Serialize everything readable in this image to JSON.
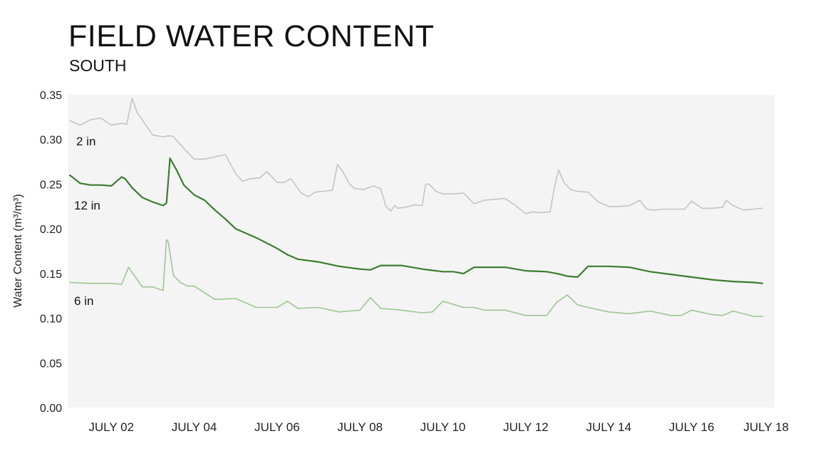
{
  "header": {
    "title": "FIELD WATER CONTENT",
    "subtitle": "SOUTH"
  },
  "chart_data": {
    "type": "line",
    "title": "FIELD WATER CONTENT",
    "subtitle": "SOUTH",
    "xlabel": "",
    "ylabel": "Water Content (m³/m³)",
    "xlim": [
      "2023-07-01T12:00",
      "2023-07-18T05:00"
    ],
    "ylim": [
      0,
      0.35
    ],
    "x_ticks": [
      {
        "date": "2023-07-02T12:00",
        "label": "JULY 02"
      },
      {
        "date": "2023-07-04T12:00",
        "label": "JULY 04"
      },
      {
        "date": "2023-07-06T12:00",
        "label": "JULY 06"
      },
      {
        "date": "2023-07-08T12:00",
        "label": "JULY 08"
      },
      {
        "date": "2023-07-10T12:00",
        "label": "JULY 10"
      },
      {
        "date": "2023-07-12T12:00",
        "label": "JULY 12"
      },
      {
        "date": "2023-07-14T12:00",
        "label": "JULY 14"
      },
      {
        "date": "2023-07-16T12:00",
        "label": "JULY 16"
      },
      {
        "date": "2023-07-18T12:00",
        "label": "JULY 18"
      }
    ],
    "y_ticks": [
      {
        "value": 0,
        "label": "0.00"
      },
      {
        "value": 0.05,
        "label": "0.05"
      },
      {
        "value": 0.1,
        "label": "0.10"
      },
      {
        "value": 0.15,
        "label": "0.15"
      },
      {
        "value": 0.2,
        "label": "0.20"
      },
      {
        "value": 0.25,
        "label": "0.25"
      },
      {
        "value": 0.3,
        "label": "0.30"
      },
      {
        "value": 0.35,
        "label": "0.35"
      }
    ],
    "grid": false,
    "legend": "inline labels",
    "colors": {
      "plot_background": "#f4f4f4",
      "series_2in": "#c4c4c4",
      "series_12in": "#3b7d2e",
      "series_6in": "#9cc792"
    },
    "series": [
      {
        "name": "2 in",
        "color": "#c4c4c4",
        "x": [
          "2023-07-01T12:00",
          "2023-07-01T18:00",
          "2023-07-02T00:00",
          "2023-07-02T06:00",
          "2023-07-02T12:00",
          "2023-07-02T18:00",
          "2023-07-02T21:00",
          "2023-07-03T00:00",
          "2023-07-03T03:00",
          "2023-07-03T12:00",
          "2023-07-03T18:00",
          "2023-07-03T21:00",
          "2023-07-03T23:00",
          "2023-07-04T00:00",
          "2023-07-04T06:00",
          "2023-07-04T12:00",
          "2023-07-04T18:00",
          "2023-07-05T06:00",
          "2023-07-05T12:00",
          "2023-07-05T16:00",
          "2023-07-05T20:00",
          "2023-07-06T02:00",
          "2023-07-06T06:00",
          "2023-07-06T09:00",
          "2023-07-06T12:00",
          "2023-07-06T16:00",
          "2023-07-06T20:00",
          "2023-07-07T02:00",
          "2023-07-07T06:00",
          "2023-07-07T10:00",
          "2023-07-07T14:00",
          "2023-07-07T20:00",
          "2023-07-07T23:00",
          "2023-07-08T02:00",
          "2023-07-08T06:00",
          "2023-07-08T09:00",
          "2023-07-08T14:00",
          "2023-07-08T20:00",
          "2023-07-09T00:00",
          "2023-07-09T03:00",
          "2023-07-09T06:00",
          "2023-07-09T08:00",
          "2023-07-09T10:00",
          "2023-07-09T14:00",
          "2023-07-09T20:00",
          "2023-07-10T00:00",
          "2023-07-10T02:00",
          "2023-07-10T04:00",
          "2023-07-10T08:00",
          "2023-07-10T12:00",
          "2023-07-10T18:00",
          "2023-07-11T00:00",
          "2023-07-11T06:00",
          "2023-07-11T12:00",
          "2023-07-11T18:00",
          "2023-07-12T00:00",
          "2023-07-12T06:00",
          "2023-07-12T12:00",
          "2023-07-12T16:00",
          "2023-07-12T20:00",
          "2023-07-13T02:00",
          "2023-07-13T05:00",
          "2023-07-13T07:00",
          "2023-07-13T10:00",
          "2023-07-13T14:00",
          "2023-07-13T18:00",
          "2023-07-14T00:00",
          "2023-07-14T06:00",
          "2023-07-14T12:00",
          "2023-07-14T18:00",
          "2023-07-15T00:00",
          "2023-07-15T06:00",
          "2023-07-15T10:00",
          "2023-07-15T14:00",
          "2023-07-15T20:00",
          "2023-07-16T02:00",
          "2023-07-16T08:00",
          "2023-07-16T12:00",
          "2023-07-16T18:00",
          "2023-07-17T00:00",
          "2023-07-17T06:00",
          "2023-07-17T08:00",
          "2023-07-17T12:00",
          "2023-07-17T18:00",
          "2023-07-18T00:00",
          "2023-07-18T05:00"
        ],
        "values": [
          0.321,
          0.316,
          0.322,
          0.324,
          0.316,
          0.318,
          0.317,
          0.346,
          0.33,
          0.305,
          0.303,
          0.304,
          0.304,
          0.303,
          0.29,
          0.278,
          0.278,
          0.283,
          0.262,
          0.253,
          0.256,
          0.257,
          0.264,
          0.258,
          0.252,
          0.252,
          0.256,
          0.24,
          0.236,
          0.241,
          0.242,
          0.243,
          0.272,
          0.264,
          0.25,
          0.245,
          0.244,
          0.248,
          0.245,
          0.225,
          0.22,
          0.226,
          0.223,
          0.224,
          0.227,
          0.226,
          0.25,
          0.25,
          0.242,
          0.239,
          0.239,
          0.24,
          0.228,
          0.232,
          0.233,
          0.234,
          0.226,
          0.217,
          0.219,
          0.218,
          0.219,
          0.25,
          0.266,
          0.252,
          0.244,
          0.242,
          0.241,
          0.23,
          0.225,
          0.225,
          0.226,
          0.232,
          0.222,
          0.221,
          0.222,
          0.222,
          0.222,
          0.231,
          0.223,
          0.223,
          0.224,
          0.232,
          0.226,
          0.221,
          0.222,
          0.223
        ]
      },
      {
        "name": "12 in",
        "color": "#3b7d2e",
        "x": [
          "2023-07-01T12:00",
          "2023-07-01T18:00",
          "2023-07-02T00:00",
          "2023-07-02T06:00",
          "2023-07-02T12:00",
          "2023-07-02T18:00",
          "2023-07-02T20:00",
          "2023-07-03T00:00",
          "2023-07-03T06:00",
          "2023-07-03T12:00",
          "2023-07-03T18:00",
          "2023-07-03T20:00",
          "2023-07-03T22:00",
          "2023-07-04T02:00",
          "2023-07-04T06:00",
          "2023-07-04T12:00",
          "2023-07-04T18:00",
          "2023-07-05T00:00",
          "2023-07-05T06:00",
          "2023-07-05T12:00",
          "2023-07-06T00:00",
          "2023-07-06T12:00",
          "2023-07-06T18:00",
          "2023-07-07T00:00",
          "2023-07-07T12:00",
          "2023-07-08T00:00",
          "2023-07-08T12:00",
          "2023-07-08T18:00",
          "2023-07-09T00:00",
          "2023-07-09T12:00",
          "2023-07-10T00:00",
          "2023-07-10T12:00",
          "2023-07-10T18:00",
          "2023-07-11T00:00",
          "2023-07-11T06:00",
          "2023-07-11T12:00",
          "2023-07-12T00:00",
          "2023-07-12T12:00",
          "2023-07-13T00:00",
          "2023-07-13T06:00",
          "2023-07-13T12:00",
          "2023-07-13T18:00",
          "2023-07-14T00:00",
          "2023-07-14T12:00",
          "2023-07-15T00:00",
          "2023-07-15T12:00",
          "2023-07-16T00:00",
          "2023-07-16T12:00",
          "2023-07-17T00:00",
          "2023-07-17T12:00",
          "2023-07-18T00:00",
          "2023-07-18T05:00"
        ],
        "values": [
          0.26,
          0.251,
          0.249,
          0.249,
          0.248,
          0.258,
          0.256,
          0.246,
          0.235,
          0.23,
          0.226,
          0.229,
          0.279,
          0.265,
          0.249,
          0.238,
          0.232,
          0.221,
          0.211,
          0.2,
          0.19,
          0.178,
          0.171,
          0.166,
          0.163,
          0.158,
          0.155,
          0.154,
          0.159,
          0.159,
          0.155,
          0.152,
          0.152,
          0.15,
          0.157,
          0.157,
          0.157,
          0.153,
          0.152,
          0.15,
          0.147,
          0.146,
          0.158,
          0.158,
          0.157,
          0.152,
          0.149,
          0.146,
          0.143,
          0.141,
          0.14,
          0.139
        ]
      },
      {
        "name": "6 in",
        "color": "#9cc792",
        "x": [
          "2023-07-01T12:00",
          "2023-07-02T00:00",
          "2023-07-02T12:00",
          "2023-07-02T18:00",
          "2023-07-02T22:00",
          "2023-07-03T02:00",
          "2023-07-03T06:00",
          "2023-07-03T12:00",
          "2023-07-03T18:00",
          "2023-07-03T20:00",
          "2023-07-03T21:00",
          "2023-07-04T00:00",
          "2023-07-04T04:00",
          "2023-07-04T08:00",
          "2023-07-04T12:00",
          "2023-07-05T00:00",
          "2023-07-05T12:00",
          "2023-07-06T00:00",
          "2023-07-06T12:00",
          "2023-07-06T18:00",
          "2023-07-07T00:00",
          "2023-07-07T12:00",
          "2023-07-08T00:00",
          "2023-07-08T06:00",
          "2023-07-08T12:00",
          "2023-07-08T18:00",
          "2023-07-09T00:00",
          "2023-07-09T06:00",
          "2023-07-09T12:00",
          "2023-07-10T00:00",
          "2023-07-10T06:00",
          "2023-07-10T12:00",
          "2023-07-11T00:00",
          "2023-07-11T06:00",
          "2023-07-11T12:00",
          "2023-07-12T00:00",
          "2023-07-12T12:00",
          "2023-07-13T00:00",
          "2023-07-13T06:00",
          "2023-07-13T12:00",
          "2023-07-13T18:00",
          "2023-07-14T00:00",
          "2023-07-14T12:00",
          "2023-07-15T00:00",
          "2023-07-15T12:00",
          "2023-07-16T00:00",
          "2023-07-16T06:00",
          "2023-07-16T12:00",
          "2023-07-17T00:00",
          "2023-07-17T06:00",
          "2023-07-17T12:00",
          "2023-07-18T00:00",
          "2023-07-18T05:00"
        ],
        "values": [
          0.14,
          0.139,
          0.139,
          0.138,
          0.157,
          0.146,
          0.135,
          0.135,
          0.131,
          0.188,
          0.185,
          0.148,
          0.14,
          0.136,
          0.136,
          0.121,
          0.122,
          0.112,
          0.112,
          0.119,
          0.111,
          0.112,
          0.107,
          0.108,
          0.109,
          0.123,
          0.111,
          0.11,
          0.109,
          0.106,
          0.107,
          0.119,
          0.112,
          0.112,
          0.109,
          0.109,
          0.103,
          0.103,
          0.118,
          0.126,
          0.115,
          0.112,
          0.107,
          0.105,
          0.108,
          0.103,
          0.103,
          0.109,
          0.104,
          0.103,
          0.108,
          0.102,
          0.102
        ]
      }
    ],
    "series_labels": [
      "2 in",
      "12 in",
      "6 in"
    ]
  }
}
